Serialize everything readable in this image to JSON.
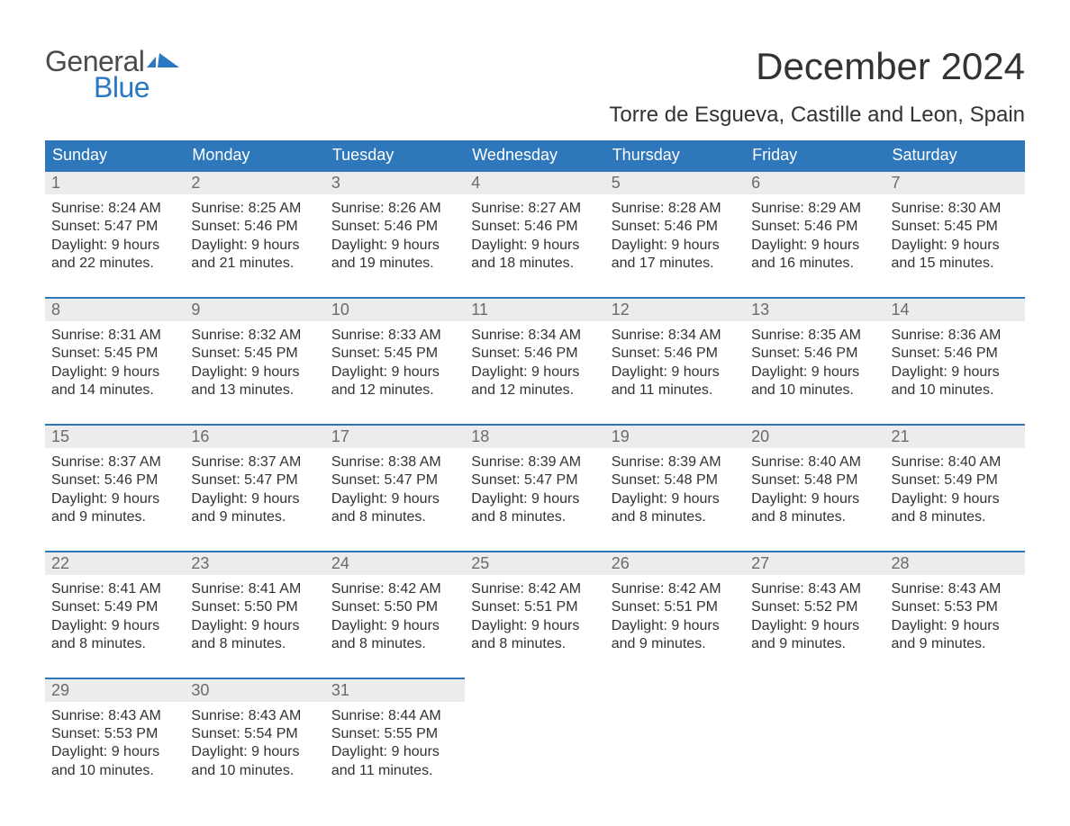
{
  "logo": {
    "text1": "General",
    "text2": "Blue",
    "color_gray": "#4b4b4b",
    "color_blue": "#2b78c2"
  },
  "title": "December 2024",
  "location": "Torre de Esgueva, Castille and Leon, Spain",
  "colors": {
    "header_bg": "#2f77bb",
    "header_text": "#ffffff",
    "day_band_bg": "#ececec",
    "day_num_color": "#6b6b6b",
    "body_text": "#333333",
    "cell_top_border": "#2f77bb",
    "page_bg": "#ffffff"
  },
  "days_of_week": [
    "Sunday",
    "Monday",
    "Tuesday",
    "Wednesday",
    "Thursday",
    "Friday",
    "Saturday"
  ],
  "weeks": [
    [
      {
        "num": "1",
        "sunrise": "Sunrise: 8:24 AM",
        "sunset": "Sunset: 5:47 PM",
        "daylight1": "Daylight: 9 hours",
        "daylight2": "and 22 minutes."
      },
      {
        "num": "2",
        "sunrise": "Sunrise: 8:25 AM",
        "sunset": "Sunset: 5:46 PM",
        "daylight1": "Daylight: 9 hours",
        "daylight2": "and 21 minutes."
      },
      {
        "num": "3",
        "sunrise": "Sunrise: 8:26 AM",
        "sunset": "Sunset: 5:46 PM",
        "daylight1": "Daylight: 9 hours",
        "daylight2": "and 19 minutes."
      },
      {
        "num": "4",
        "sunrise": "Sunrise: 8:27 AM",
        "sunset": "Sunset: 5:46 PM",
        "daylight1": "Daylight: 9 hours",
        "daylight2": "and 18 minutes."
      },
      {
        "num": "5",
        "sunrise": "Sunrise: 8:28 AM",
        "sunset": "Sunset: 5:46 PM",
        "daylight1": "Daylight: 9 hours",
        "daylight2": "and 17 minutes."
      },
      {
        "num": "6",
        "sunrise": "Sunrise: 8:29 AM",
        "sunset": "Sunset: 5:46 PM",
        "daylight1": "Daylight: 9 hours",
        "daylight2": "and 16 minutes."
      },
      {
        "num": "7",
        "sunrise": "Sunrise: 8:30 AM",
        "sunset": "Sunset: 5:45 PM",
        "daylight1": "Daylight: 9 hours",
        "daylight2": "and 15 minutes."
      }
    ],
    [
      {
        "num": "8",
        "sunrise": "Sunrise: 8:31 AM",
        "sunset": "Sunset: 5:45 PM",
        "daylight1": "Daylight: 9 hours",
        "daylight2": "and 14 minutes."
      },
      {
        "num": "9",
        "sunrise": "Sunrise: 8:32 AM",
        "sunset": "Sunset: 5:45 PM",
        "daylight1": "Daylight: 9 hours",
        "daylight2": "and 13 minutes."
      },
      {
        "num": "10",
        "sunrise": "Sunrise: 8:33 AM",
        "sunset": "Sunset: 5:45 PM",
        "daylight1": "Daylight: 9 hours",
        "daylight2": "and 12 minutes."
      },
      {
        "num": "11",
        "sunrise": "Sunrise: 8:34 AM",
        "sunset": "Sunset: 5:46 PM",
        "daylight1": "Daylight: 9 hours",
        "daylight2": "and 12 minutes."
      },
      {
        "num": "12",
        "sunrise": "Sunrise: 8:34 AM",
        "sunset": "Sunset: 5:46 PM",
        "daylight1": "Daylight: 9 hours",
        "daylight2": "and 11 minutes."
      },
      {
        "num": "13",
        "sunrise": "Sunrise: 8:35 AM",
        "sunset": "Sunset: 5:46 PM",
        "daylight1": "Daylight: 9 hours",
        "daylight2": "and 10 minutes."
      },
      {
        "num": "14",
        "sunrise": "Sunrise: 8:36 AM",
        "sunset": "Sunset: 5:46 PM",
        "daylight1": "Daylight: 9 hours",
        "daylight2": "and 10 minutes."
      }
    ],
    [
      {
        "num": "15",
        "sunrise": "Sunrise: 8:37 AM",
        "sunset": "Sunset: 5:46 PM",
        "daylight1": "Daylight: 9 hours",
        "daylight2": "and 9 minutes."
      },
      {
        "num": "16",
        "sunrise": "Sunrise: 8:37 AM",
        "sunset": "Sunset: 5:47 PM",
        "daylight1": "Daylight: 9 hours",
        "daylight2": "and 9 minutes."
      },
      {
        "num": "17",
        "sunrise": "Sunrise: 8:38 AM",
        "sunset": "Sunset: 5:47 PM",
        "daylight1": "Daylight: 9 hours",
        "daylight2": "and 8 minutes."
      },
      {
        "num": "18",
        "sunrise": "Sunrise: 8:39 AM",
        "sunset": "Sunset: 5:47 PM",
        "daylight1": "Daylight: 9 hours",
        "daylight2": "and 8 minutes."
      },
      {
        "num": "19",
        "sunrise": "Sunrise: 8:39 AM",
        "sunset": "Sunset: 5:48 PM",
        "daylight1": "Daylight: 9 hours",
        "daylight2": "and 8 minutes."
      },
      {
        "num": "20",
        "sunrise": "Sunrise: 8:40 AM",
        "sunset": "Sunset: 5:48 PM",
        "daylight1": "Daylight: 9 hours",
        "daylight2": "and 8 minutes."
      },
      {
        "num": "21",
        "sunrise": "Sunrise: 8:40 AM",
        "sunset": "Sunset: 5:49 PM",
        "daylight1": "Daylight: 9 hours",
        "daylight2": "and 8 minutes."
      }
    ],
    [
      {
        "num": "22",
        "sunrise": "Sunrise: 8:41 AM",
        "sunset": "Sunset: 5:49 PM",
        "daylight1": "Daylight: 9 hours",
        "daylight2": "and 8 minutes."
      },
      {
        "num": "23",
        "sunrise": "Sunrise: 8:41 AM",
        "sunset": "Sunset: 5:50 PM",
        "daylight1": "Daylight: 9 hours",
        "daylight2": "and 8 minutes."
      },
      {
        "num": "24",
        "sunrise": "Sunrise: 8:42 AM",
        "sunset": "Sunset: 5:50 PM",
        "daylight1": "Daylight: 9 hours",
        "daylight2": "and 8 minutes."
      },
      {
        "num": "25",
        "sunrise": "Sunrise: 8:42 AM",
        "sunset": "Sunset: 5:51 PM",
        "daylight1": "Daylight: 9 hours",
        "daylight2": "and 8 minutes."
      },
      {
        "num": "26",
        "sunrise": "Sunrise: 8:42 AM",
        "sunset": "Sunset: 5:51 PM",
        "daylight1": "Daylight: 9 hours",
        "daylight2": "and 9 minutes."
      },
      {
        "num": "27",
        "sunrise": "Sunrise: 8:43 AM",
        "sunset": "Sunset: 5:52 PM",
        "daylight1": "Daylight: 9 hours",
        "daylight2": "and 9 minutes."
      },
      {
        "num": "28",
        "sunrise": "Sunrise: 8:43 AM",
        "sunset": "Sunset: 5:53 PM",
        "daylight1": "Daylight: 9 hours",
        "daylight2": "and 9 minutes."
      }
    ],
    [
      {
        "num": "29",
        "sunrise": "Sunrise: 8:43 AM",
        "sunset": "Sunset: 5:53 PM",
        "daylight1": "Daylight: 9 hours",
        "daylight2": "and 10 minutes."
      },
      {
        "num": "30",
        "sunrise": "Sunrise: 8:43 AM",
        "sunset": "Sunset: 5:54 PM",
        "daylight1": "Daylight: 9 hours",
        "daylight2": "and 10 minutes."
      },
      {
        "num": "31",
        "sunrise": "Sunrise: 8:44 AM",
        "sunset": "Sunset: 5:55 PM",
        "daylight1": "Daylight: 9 hours",
        "daylight2": "and 11 minutes."
      },
      {
        "empty": true
      },
      {
        "empty": true
      },
      {
        "empty": true
      },
      {
        "empty": true
      }
    ]
  ]
}
